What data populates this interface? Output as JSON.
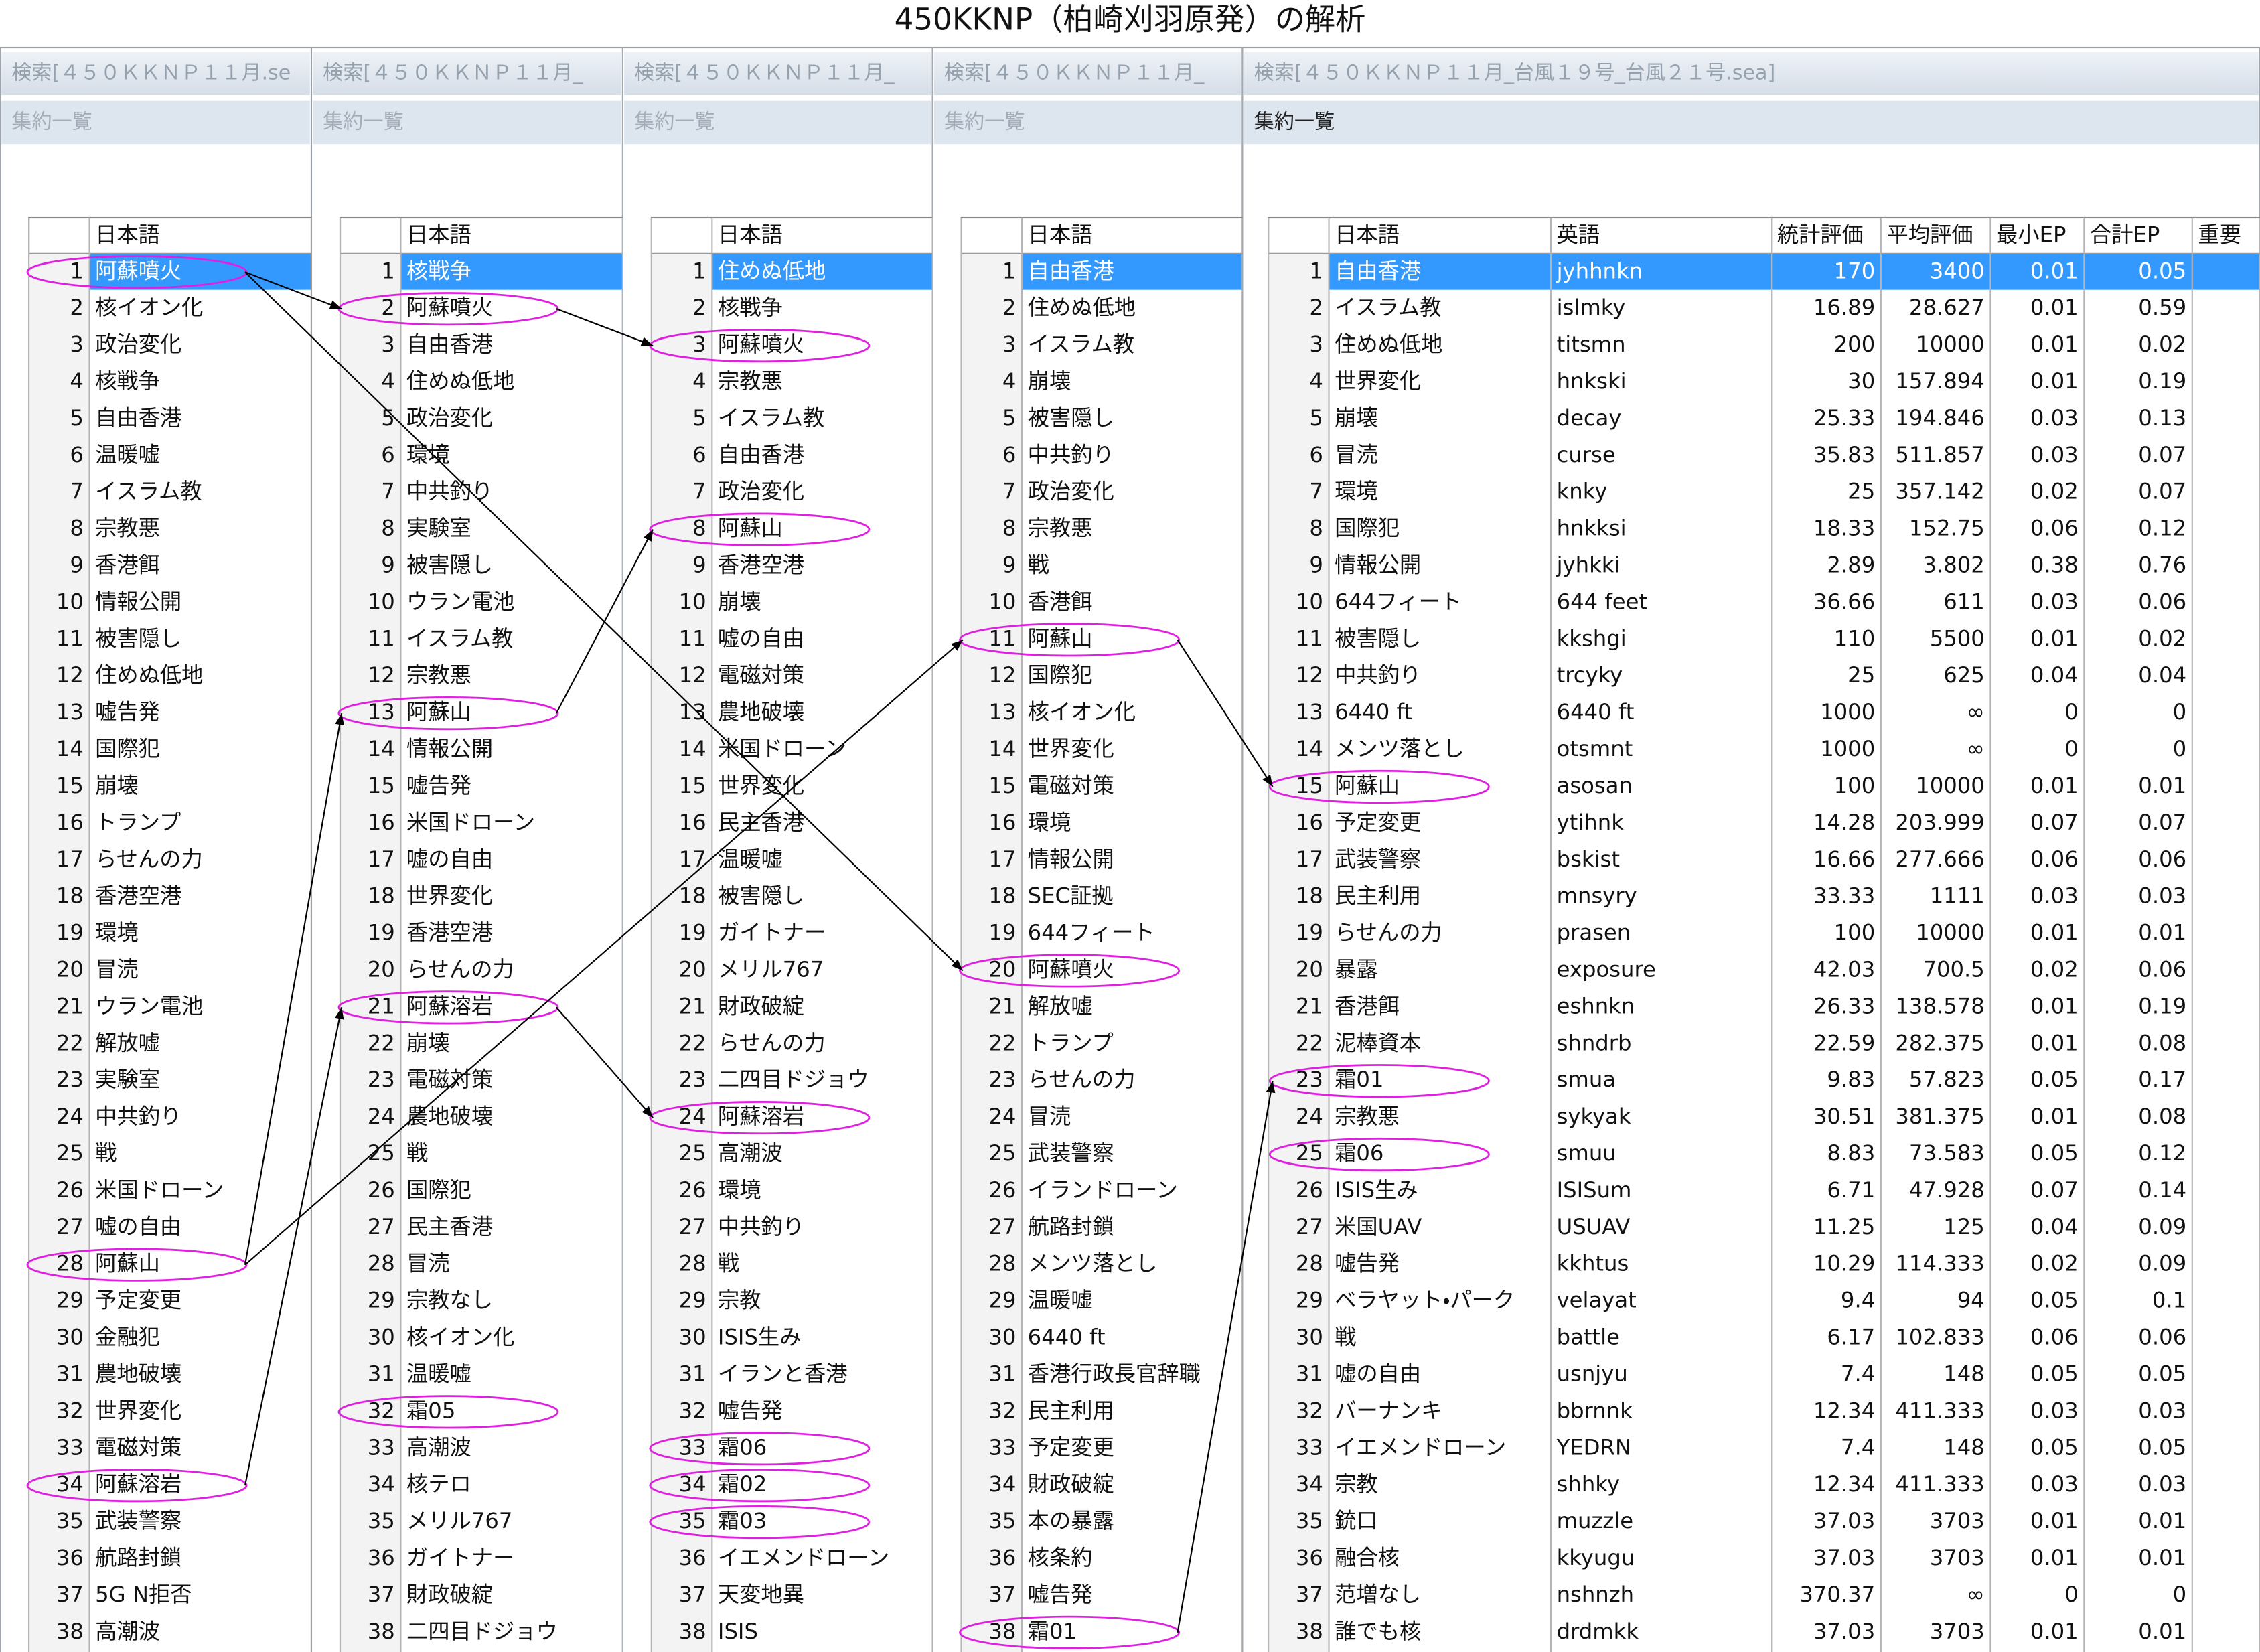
{
  "title": "450KKNP（柏崎刈羽原発）の解析",
  "panels": [
    {
      "window_title": "検索[４５０ＫＫＮＰ１１月.se",
      "list_label": "集約一覧",
      "columns": [
        "日本語"
      ],
      "rows": [
        [
          1,
          "阿蘇噴火"
        ],
        [
          2,
          "核イオン化"
        ],
        [
          3,
          "政治変化"
        ],
        [
          4,
          "核戦争"
        ],
        [
          5,
          "自由香港"
        ],
        [
          6,
          "温暖嘘"
        ],
        [
          7,
          "イスラム教"
        ],
        [
          8,
          "宗教悪"
        ],
        [
          9,
          "香港餌"
        ],
        [
          10,
          "情報公開"
        ],
        [
          11,
          "被害隠し"
        ],
        [
          12,
          "住めぬ低地"
        ],
        [
          13,
          "嘘告発"
        ],
        [
          14,
          "国際犯"
        ],
        [
          15,
          "崩壊"
        ],
        [
          16,
          "トランプ"
        ],
        [
          17,
          "らせんの力"
        ],
        [
          18,
          "香港空港"
        ],
        [
          19,
          "環境"
        ],
        [
          20,
          "冒涜"
        ],
        [
          21,
          "ウラン電池"
        ],
        [
          22,
          "解放嘘"
        ],
        [
          23,
          "実験室"
        ],
        [
          24,
          "中共釣り"
        ],
        [
          25,
          "戦"
        ],
        [
          26,
          "米国ドローン"
        ],
        [
          27,
          "嘘の自由"
        ],
        [
          28,
          "阿蘇山"
        ],
        [
          29,
          "予定変更"
        ],
        [
          30,
          "金融犯"
        ],
        [
          31,
          "農地破壊"
        ],
        [
          32,
          "世界変化"
        ],
        [
          33,
          "電磁対策"
        ],
        [
          34,
          "阿蘇溶岩"
        ],
        [
          35,
          "武装警察"
        ],
        [
          36,
          "航路封鎖"
        ],
        [
          37,
          "5G N拒否"
        ],
        [
          38,
          "高潮波"
        ]
      ]
    },
    {
      "window_title": "検索[４５０ＫＫＮＰ１１月_",
      "list_label": "集約一覧",
      "columns": [
        "日本語"
      ],
      "rows": [
        [
          1,
          "核戦争"
        ],
        [
          2,
          "阿蘇噴火"
        ],
        [
          3,
          "自由香港"
        ],
        [
          4,
          "住めぬ低地"
        ],
        [
          5,
          "政治変化"
        ],
        [
          6,
          "環境"
        ],
        [
          7,
          "中共釣り"
        ],
        [
          8,
          "実験室"
        ],
        [
          9,
          "被害隠し"
        ],
        [
          10,
          "ウラン電池"
        ],
        [
          11,
          "イスラム教"
        ],
        [
          12,
          "宗教悪"
        ],
        [
          13,
          "阿蘇山"
        ],
        [
          14,
          "情報公開"
        ],
        [
          15,
          "嘘告発"
        ],
        [
          16,
          "米国ドローン"
        ],
        [
          17,
          "嘘の自由"
        ],
        [
          18,
          "世界変化"
        ],
        [
          19,
          "香港空港"
        ],
        [
          20,
          "らせんの力"
        ],
        [
          21,
          "阿蘇溶岩"
        ],
        [
          22,
          "崩壊"
        ],
        [
          23,
          "電磁対策"
        ],
        [
          24,
          "農地破壊"
        ],
        [
          25,
          "戦"
        ],
        [
          26,
          "国際犯"
        ],
        [
          27,
          "民主香港"
        ],
        [
          28,
          "冒涜"
        ],
        [
          29,
          "宗教なし"
        ],
        [
          30,
          "核イオン化"
        ],
        [
          31,
          "温暖嘘"
        ],
        [
          32,
          "霜05"
        ],
        [
          33,
          "高潮波"
        ],
        [
          34,
          "核テロ"
        ],
        [
          35,
          "メリル767"
        ],
        [
          36,
          "ガイトナー"
        ],
        [
          37,
          "財政破綻"
        ],
        [
          38,
          "二四目ドジョウ"
        ]
      ]
    },
    {
      "window_title": "検索[４５０ＫＫＮＰ１１月_",
      "list_label": "集約一覧",
      "columns": [
        "日本語"
      ],
      "rows": [
        [
          1,
          "住めぬ低地"
        ],
        [
          2,
          "核戦争"
        ],
        [
          3,
          "阿蘇噴火"
        ],
        [
          4,
          "宗教悪"
        ],
        [
          5,
          "イスラム教"
        ],
        [
          6,
          "自由香港"
        ],
        [
          7,
          "政治変化"
        ],
        [
          8,
          "阿蘇山"
        ],
        [
          9,
          "香港空港"
        ],
        [
          10,
          "崩壊"
        ],
        [
          11,
          "嘘の自由"
        ],
        [
          12,
          "電磁対策"
        ],
        [
          13,
          "農地破壊"
        ],
        [
          14,
          "米国ドローン"
        ],
        [
          15,
          "世界変化"
        ],
        [
          16,
          "民主香港"
        ],
        [
          17,
          "温暖嘘"
        ],
        [
          18,
          "被害隠し"
        ],
        [
          19,
          "ガイトナー"
        ],
        [
          20,
          "メリル767"
        ],
        [
          21,
          "財政破綻"
        ],
        [
          22,
          "らせんの力"
        ],
        [
          23,
          "二四目ドジョウ"
        ],
        [
          24,
          "阿蘇溶岩"
        ],
        [
          25,
          "高潮波"
        ],
        [
          26,
          "環境"
        ],
        [
          27,
          "中共釣り"
        ],
        [
          28,
          "戦"
        ],
        [
          29,
          "宗教"
        ],
        [
          30,
          "ISIS生み"
        ],
        [
          31,
          "イランと香港"
        ],
        [
          32,
          "嘘告発"
        ],
        [
          33,
          "霜06"
        ],
        [
          34,
          "霜02"
        ],
        [
          35,
          "霜03"
        ],
        [
          36,
          "イエメンドローン"
        ],
        [
          37,
          "天変地異"
        ],
        [
          38,
          "ISIS"
        ]
      ]
    },
    {
      "window_title": "検索[４５０ＫＫＮＰ１１月_",
      "list_label": "集約一覧",
      "columns": [
        "日本語"
      ],
      "rows": [
        [
          1,
          "自由香港"
        ],
        [
          2,
          "住めぬ低地"
        ],
        [
          3,
          "イスラム教"
        ],
        [
          4,
          "崩壊"
        ],
        [
          5,
          "被害隠し"
        ],
        [
          6,
          "中共釣り"
        ],
        [
          7,
          "政治変化"
        ],
        [
          8,
          "宗教悪"
        ],
        [
          9,
          "戦"
        ],
        [
          10,
          "香港餌"
        ],
        [
          11,
          "阿蘇山"
        ],
        [
          12,
          "国際犯"
        ],
        [
          13,
          "核イオン化"
        ],
        [
          14,
          "世界変化"
        ],
        [
          15,
          "電磁対策"
        ],
        [
          16,
          "環境"
        ],
        [
          17,
          "情報公開"
        ],
        [
          18,
          "SEC証拠"
        ],
        [
          19,
          "644フィート"
        ],
        [
          20,
          "阿蘇噴火"
        ],
        [
          21,
          "解放嘘"
        ],
        [
          22,
          "トランプ"
        ],
        [
          23,
          "らせんの力"
        ],
        [
          24,
          "冒涜"
        ],
        [
          25,
          "武装警察"
        ],
        [
          26,
          "イランドローン"
        ],
        [
          27,
          "航路封鎖"
        ],
        [
          28,
          "メンツ落とし"
        ],
        [
          29,
          "温暖嘘"
        ],
        [
          30,
          "6440 ft"
        ],
        [
          31,
          "香港行政長官辞職"
        ],
        [
          32,
          "民主利用"
        ],
        [
          33,
          "予定変更"
        ],
        [
          34,
          "財政破綻"
        ],
        [
          35,
          "本の暴露"
        ],
        [
          36,
          "核条約"
        ],
        [
          37,
          "嘘告発"
        ],
        [
          38,
          "霜01"
        ]
      ]
    },
    {
      "window_title": "検索[４５０ＫＫＮＰ１１月_台風１９号_台風２１号.sea]",
      "list_label": "集約一覧",
      "columns": [
        "日本語",
        "英語",
        "統計評価",
        "平均評価",
        "最小EP",
        "合計EP",
        "重要"
      ],
      "rows": [
        [
          1,
          "自由香港",
          "jyhhnkn",
          "170",
          "3400",
          "0.01",
          "0.05"
        ],
        [
          2,
          "イスラム教",
          "islmky",
          "16.89",
          "28.627",
          "0.01",
          "0.59"
        ],
        [
          3,
          "住めぬ低地",
          "titsmn",
          "200",
          "10000",
          "0.01",
          "0.02"
        ],
        [
          4,
          "世界変化",
          "hnkski",
          "30",
          "157.894",
          "0.01",
          "0.19"
        ],
        [
          5,
          "崩壊",
          "decay",
          "25.33",
          "194.846",
          "0.03",
          "0.13"
        ],
        [
          6,
          "冒涜",
          "curse",
          "35.83",
          "511.857",
          "0.03",
          "0.07"
        ],
        [
          7,
          "環境",
          "knky",
          "25",
          "357.142",
          "0.02",
          "0.07"
        ],
        [
          8,
          "国際犯",
          "hnkksi",
          "18.33",
          "152.75",
          "0.06",
          "0.12"
        ],
        [
          9,
          "情報公開",
          "jyhkki",
          "2.89",
          "3.802",
          "0.38",
          "0.76"
        ],
        [
          10,
          "644フィート",
          "644 feet",
          "36.66",
          "611",
          "0.03",
          "0.06"
        ],
        [
          11,
          "被害隠し",
          "kkshgi",
          "110",
          "5500",
          "0.01",
          "0.02"
        ],
        [
          12,
          "中共釣り",
          "trcyky",
          "25",
          "625",
          "0.04",
          "0.04"
        ],
        [
          13,
          "6440 ft",
          "6440 ft",
          "1000",
          "∞",
          "0",
          "0"
        ],
        [
          14,
          "メンツ落とし",
          "otsmnt",
          "1000",
          "∞",
          "0",
          "0"
        ],
        [
          15,
          "阿蘇山",
          "asosan",
          "100",
          "10000",
          "0.01",
          "0.01"
        ],
        [
          16,
          "予定変更",
          "ytihnk",
          "14.28",
          "203.999",
          "0.07",
          "0.07"
        ],
        [
          17,
          "武装警察",
          "bskist",
          "16.66",
          "277.666",
          "0.06",
          "0.06"
        ],
        [
          18,
          "民主利用",
          "mnsyry",
          "33.33",
          "1111",
          "0.03",
          "0.03"
        ],
        [
          19,
          "らせんの力",
          "prasen",
          "100",
          "10000",
          "0.01",
          "0.01"
        ],
        [
          20,
          "暴露",
          "exposure",
          "42.03",
          "700.5",
          "0.02",
          "0.06"
        ],
        [
          21,
          "香港餌",
          "eshnkn",
          "26.33",
          "138.578",
          "0.01",
          "0.19"
        ],
        [
          22,
          "泥棒資本",
          "shndrb",
          "22.59",
          "282.375",
          "0.01",
          "0.08"
        ],
        [
          23,
          "霜01",
          "smua",
          "9.83",
          "57.823",
          "0.05",
          "0.17"
        ],
        [
          24,
          "宗教悪",
          "sykyak",
          "30.51",
          "381.375",
          "0.01",
          "0.08"
        ],
        [
          25,
          "霜06",
          "smuu",
          "8.83",
          "73.583",
          "0.05",
          "0.12"
        ],
        [
          26,
          "ISIS生み",
          "ISISum",
          "6.71",
          "47.928",
          "0.07",
          "0.14"
        ],
        [
          27,
          "米国UAV",
          "USUAV",
          "11.25",
          "125",
          "0.04",
          "0.09"
        ],
        [
          28,
          "嘘告発",
          "kkhtus",
          "10.29",
          "114.333",
          "0.02",
          "0.09"
        ],
        [
          29,
          "ベラヤット・パーク",
          "velayat",
          "9.4",
          "94",
          "0.05",
          "0.1"
        ],
        [
          30,
          "戦",
          "battle",
          "6.17",
          "102.833",
          "0.06",
          "0.06"
        ],
        [
          31,
          "嘘の自由",
          "usnjyu",
          "7.4",
          "148",
          "0.05",
          "0.05"
        ],
        [
          32,
          "バーナンキ",
          "bbrnnk",
          "12.34",
          "411.333",
          "0.03",
          "0.03"
        ],
        [
          33,
          "イエメンドローン",
          "YEDRN",
          "7.4",
          "148",
          "0.05",
          "0.05"
        ],
        [
          34,
          "宗教",
          "shhky",
          "12.34",
          "411.333",
          "0.03",
          "0.03"
        ],
        [
          35,
          "銃口",
          "muzzle",
          "37.03",
          "3703",
          "0.01",
          "0.01"
        ],
        [
          36,
          "融合核",
          "kkyugu",
          "37.03",
          "3703",
          "0.01",
          "0.01"
        ],
        [
          37,
          "范増なし",
          "nshnzh",
          "370.37",
          "∞",
          "0",
          "0"
        ],
        [
          38,
          "誰でも核",
          "drdmkk",
          "37.03",
          "3703",
          "0.01",
          "0.01"
        ]
      ]
    }
  ]
}
